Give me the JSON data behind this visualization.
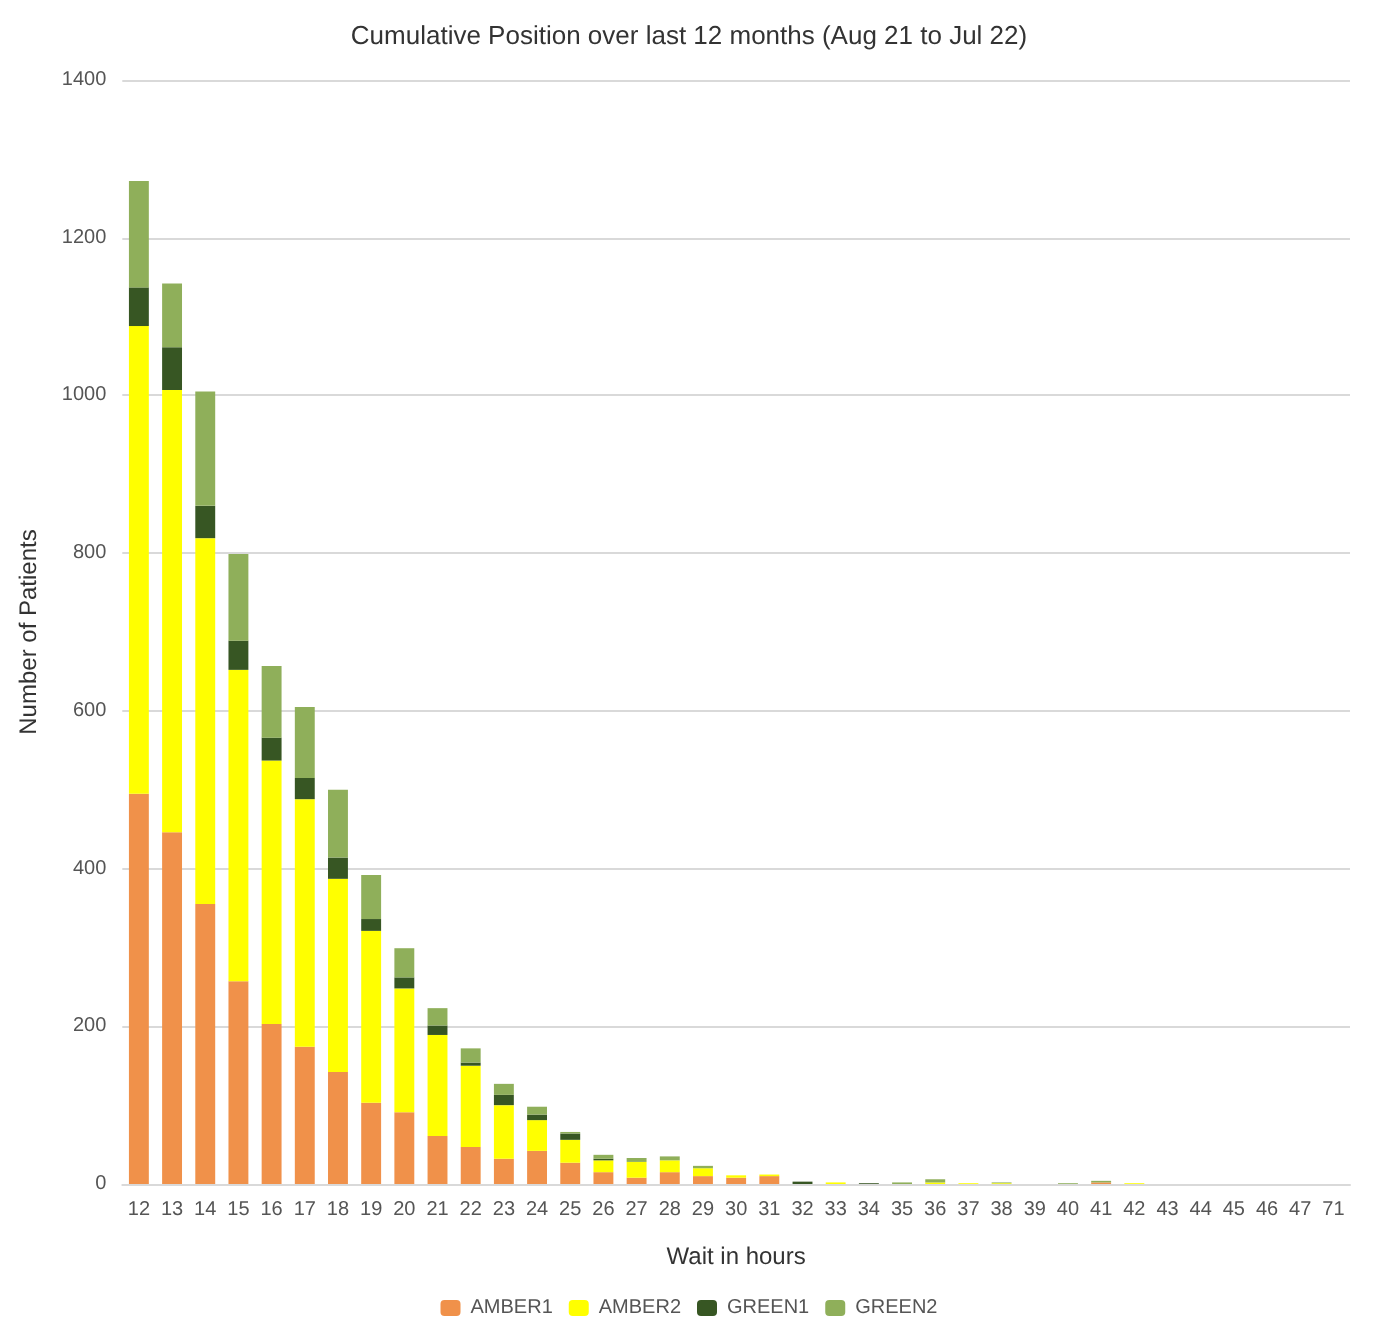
{
  "chart_data": {
    "type": "bar",
    "stacked": true,
    "title": "Cumulative Position over last 12 months (Aug 21 to Jul 22)",
    "xlabel": "Wait in hours",
    "ylabel": "Number of Patients",
    "categories": [
      "12",
      "13",
      "14",
      "15",
      "16",
      "17",
      "18",
      "19",
      "20",
      "21",
      "22",
      "23",
      "24",
      "25",
      "26",
      "27",
      "28",
      "29",
      "30",
      "31",
      "32",
      "33",
      "34",
      "35",
      "36",
      "37",
      "38",
      "39",
      "40",
      "41",
      "42",
      "43",
      "44",
      "45",
      "46",
      "47",
      "71"
    ],
    "series": [
      {
        "name": "AMBER1",
        "color": "#f0914a",
        "values": [
          495,
          446,
          355,
          257,
          203,
          174,
          142,
          103,
          91,
          61,
          47,
          32,
          42,
          27,
          15,
          8,
          15,
          10,
          8,
          10,
          0,
          0,
          0,
          0,
          0,
          0,
          0,
          0,
          0,
          2,
          0,
          0,
          0,
          0,
          0,
          0,
          0
        ]
      },
      {
        "name": "AMBER2",
        "color": "#ffff00",
        "values": [
          593,
          561,
          464,
          395,
          334,
          314,
          245,
          218,
          157,
          128,
          103,
          68,
          39,
          29,
          15,
          20,
          15,
          10,
          3,
          2,
          0,
          2,
          0,
          0,
          2,
          1,
          1,
          0,
          0,
          0,
          1,
          0,
          0,
          0,
          0,
          0,
          0
        ]
      },
      {
        "name": "GREEN1",
        "color": "#375623",
        "values": [
          49,
          54,
          41,
          37,
          29,
          27,
          27,
          15,
          14,
          12,
          4,
          13,
          7,
          8,
          2,
          0,
          0,
          0,
          0,
          0,
          3,
          0,
          1,
          0,
          0,
          0,
          0,
          0,
          0,
          0,
          0,
          0,
          0,
          0,
          0,
          0,
          0
        ]
      },
      {
        "name": "GREEN2",
        "color": "#8faf5a",
        "values": [
          135,
          81,
          145,
          110,
          91,
          90,
          86,
          56,
          37,
          22,
          18,
          14,
          10,
          2,
          5,
          5,
          5,
          3,
          0,
          0,
          0,
          0,
          0,
          2,
          4,
          0,
          1,
          0,
          1,
          2,
          0,
          0,
          0,
          0,
          0,
          0,
          0
        ]
      }
    ],
    "ylim": [
      0,
      1400
    ],
    "yticks": [
      0,
      200,
      400,
      600,
      800,
      1000,
      1200,
      1400
    ],
    "grid": "y",
    "legend": "bottom"
  }
}
